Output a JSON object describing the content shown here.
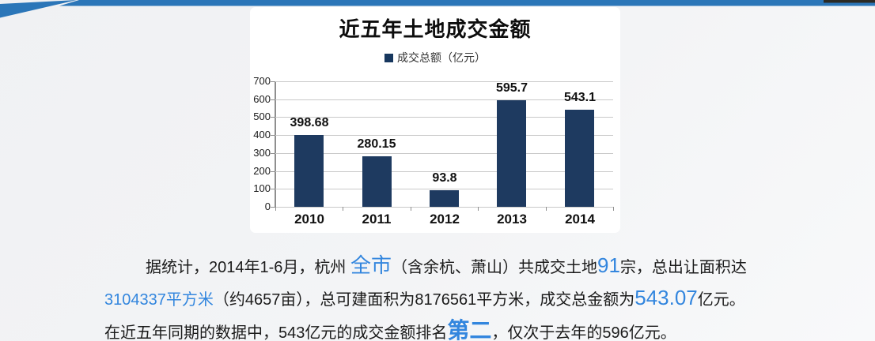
{
  "banner": {
    "bar_color": "#2b76b8",
    "photo_strip_color": "#2b2a24"
  },
  "chart_data": {
    "type": "bar",
    "title": "近五年土地成交金额",
    "legend": [
      "成交总额（亿元）"
    ],
    "legend_position": "top",
    "categories": [
      "2010",
      "2011",
      "2012",
      "2013",
      "2014"
    ],
    "values": [
      398.68,
      280.15,
      93.8,
      595.7,
      543.1
    ],
    "data_labels": [
      "398.68",
      "280.15",
      "93.8",
      "595.7",
      "543.1"
    ],
    "xlabel": "",
    "ylabel": "",
    "ylim": [
      0,
      700
    ],
    "yticks": [
      700,
      600,
      500,
      400,
      300,
      200,
      100,
      0
    ],
    "grid": true,
    "bar_color": "#1e3a60",
    "legend_marker_color": "#17375e"
  },
  "paragraph": {
    "text_color": "#1b1b1b",
    "highlight_color": "#3386de",
    "lines": [
      {
        "indent": true,
        "segments": [
          {
            "t": "据统计，2014年1-6月，杭州 ",
            "s": "n"
          },
          {
            "t": "全市",
            "s": "bl"
          },
          {
            "t": "（含余杭、萧山）共成交土地",
            "s": "n"
          },
          {
            "t": "91",
            "s": "bl"
          },
          {
            "t": "宗，总出让面积达",
            "s": "n"
          }
        ]
      },
      {
        "indent": false,
        "segments": [
          {
            "t": "3104337平方米",
            "s": "b"
          },
          {
            "t": "（约4657亩），总可建面积为8176561平方米，成交总金额为",
            "s": "n"
          },
          {
            "t": "543.07",
            "s": "bl"
          },
          {
            "t": "亿元。",
            "s": "n"
          }
        ]
      },
      {
        "indent": false,
        "segments": [
          {
            "t": "在近五年同期的数据中，543亿元的成交金额排名",
            "s": "n"
          },
          {
            "t": "第二",
            "s": "bx"
          },
          {
            "t": "，仅次于去年的596亿元。",
            "s": "n"
          }
        ]
      }
    ]
  }
}
